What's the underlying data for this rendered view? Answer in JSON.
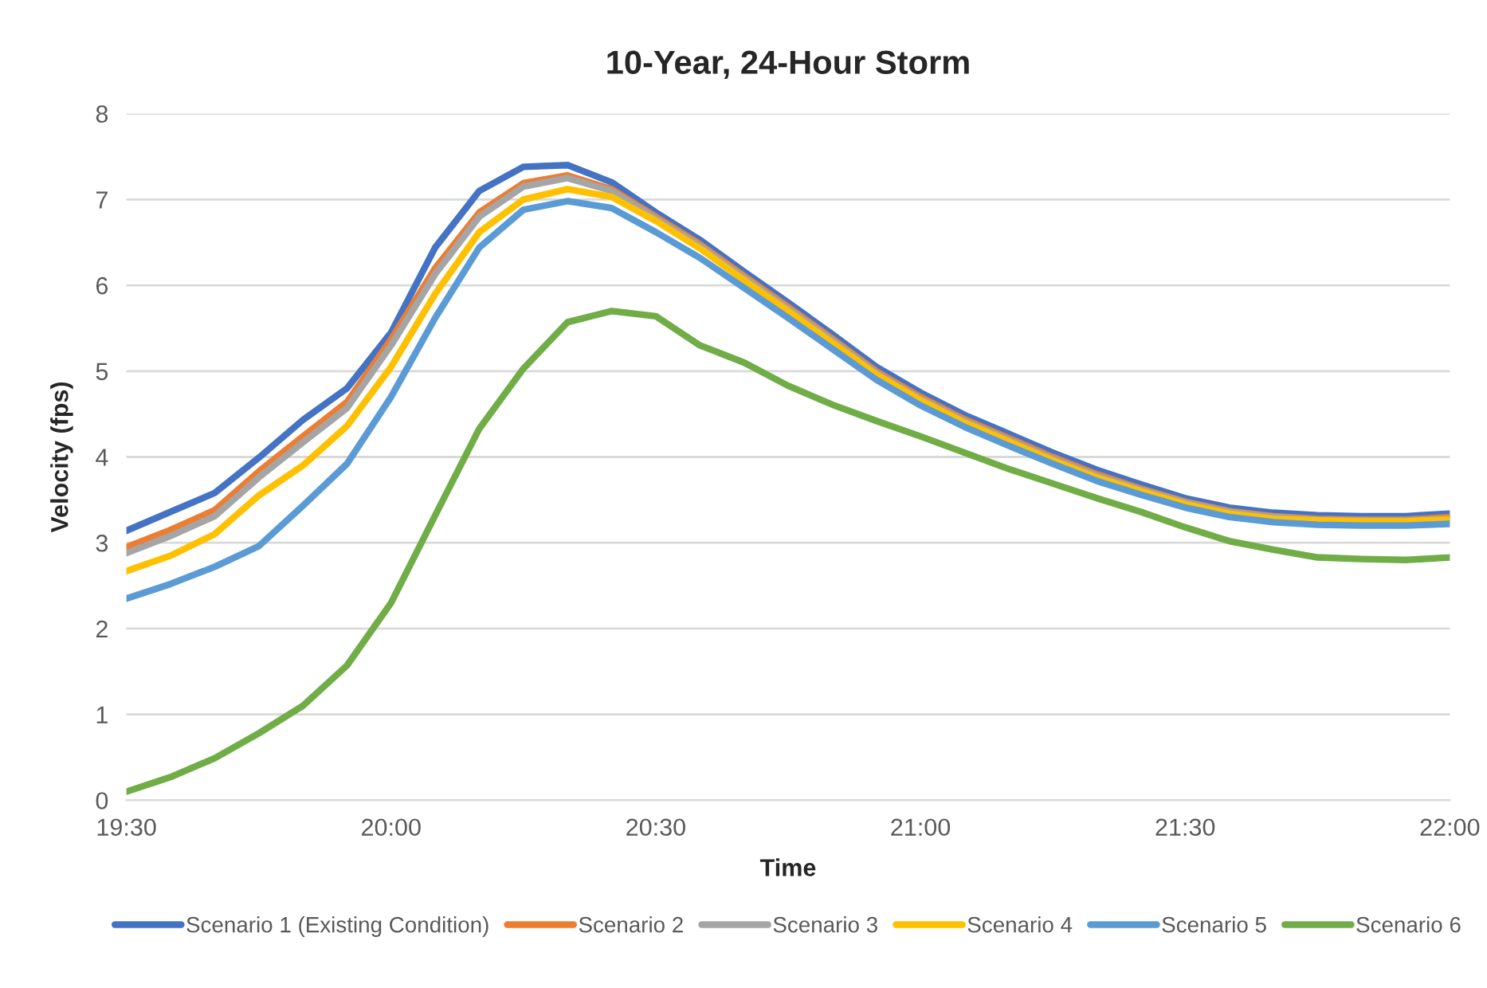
{
  "chart_data": {
    "type": "line",
    "title": "10-Year, 24-Hour Storm",
    "xlabel": "Time",
    "ylabel": "Velocity (fps)",
    "x": [
      19.5,
      19.5833,
      19.6667,
      19.75,
      19.8333,
      19.9167,
      20.0,
      20.0833,
      20.1667,
      20.25,
      20.3333,
      20.4167,
      20.5,
      20.5833,
      20.6667,
      20.75,
      20.8333,
      20.9167,
      21.0,
      21.0833,
      21.1667,
      21.25,
      21.3333,
      21.4167,
      21.5,
      21.5833,
      21.6667,
      21.75,
      21.8333,
      21.9167,
      22.0
    ],
    "series": [
      {
        "name": "Scenario 1 (Existing Condition)",
        "color": "#4472c4",
        "values": [
          3.14,
          3.36,
          3.58,
          3.99,
          4.43,
          4.8,
          5.45,
          6.44,
          7.1,
          7.38,
          7.4,
          7.2,
          6.85,
          6.53,
          6.16,
          5.8,
          5.43,
          5.05,
          4.75,
          4.49,
          4.27,
          4.05,
          3.85,
          3.68,
          3.52,
          3.41,
          3.35,
          3.32,
          3.31,
          3.31,
          3.34
        ]
      },
      {
        "name": "Scenario 2",
        "color": "#ed7d31",
        "values": [
          2.95,
          3.15,
          3.38,
          3.83,
          4.24,
          4.64,
          5.37,
          6.2,
          6.85,
          7.19,
          7.28,
          7.12,
          6.8,
          6.48,
          6.11,
          5.75,
          5.38,
          5.0,
          4.7,
          4.44,
          4.22,
          4.0,
          3.8,
          3.63,
          3.48,
          3.37,
          3.31,
          3.28,
          3.27,
          3.27,
          3.3
        ]
      },
      {
        "name": "Scenario 3",
        "color": "#a5a5a5",
        "values": [
          2.88,
          3.08,
          3.31,
          3.76,
          4.17,
          4.57,
          5.3,
          6.13,
          6.8,
          7.15,
          7.25,
          7.1,
          6.78,
          6.46,
          6.09,
          5.73,
          5.36,
          4.98,
          4.68,
          4.42,
          4.2,
          3.98,
          3.78,
          3.62,
          3.47,
          3.36,
          3.3,
          3.27,
          3.26,
          3.26,
          3.28
        ]
      },
      {
        "name": "Scenario 4",
        "color": "#ffc000",
        "values": [
          2.67,
          2.85,
          3.1,
          3.55,
          3.9,
          4.36,
          5.05,
          5.9,
          6.62,
          7.0,
          7.12,
          7.03,
          6.75,
          6.43,
          6.06,
          5.7,
          5.33,
          4.96,
          4.66,
          4.4,
          4.18,
          3.96,
          3.76,
          3.6,
          3.45,
          3.34,
          3.28,
          3.26,
          3.25,
          3.25,
          3.27
        ]
      },
      {
        "name": "Scenario 5",
        "color": "#5b9bd5",
        "values": [
          2.35,
          2.52,
          2.72,
          2.96,
          3.43,
          3.92,
          4.7,
          5.62,
          6.44,
          6.88,
          6.98,
          6.9,
          6.62,
          6.32,
          5.97,
          5.62,
          5.26,
          4.9,
          4.6,
          4.35,
          4.13,
          3.92,
          3.72,
          3.56,
          3.41,
          3.3,
          3.24,
          3.21,
          3.2,
          3.2,
          3.22
        ]
      },
      {
        "name": "Scenario 6",
        "color": "#70ad47",
        "values": [
          0.1,
          0.27,
          0.49,
          0.78,
          1.1,
          1.57,
          2.3,
          3.32,
          4.33,
          5.03,
          5.57,
          5.7,
          5.64,
          5.3,
          5.1,
          4.83,
          4.61,
          4.42,
          4.24,
          4.05,
          3.86,
          3.69,
          3.52,
          3.36,
          3.18,
          3.02,
          2.92,
          2.83,
          2.81,
          2.8,
          2.83
        ]
      }
    ],
    "xlim": [
      19.5,
      22.0
    ],
    "xticks": [
      {
        "value": 19.5,
        "label": "19:30"
      },
      {
        "value": 20.0,
        "label": "20:00"
      },
      {
        "value": 20.5,
        "label": "20:30"
      },
      {
        "value": 21.0,
        "label": "21:00"
      },
      {
        "value": 21.5,
        "label": "21:30"
      },
      {
        "value": 22.0,
        "label": "22:00"
      }
    ],
    "ylim": [
      0,
      8
    ],
    "yticks": [
      0,
      1,
      2,
      3,
      4,
      5,
      6,
      7,
      8
    ],
    "grid": "y",
    "legend": "bottom",
    "marker": "none",
    "line_style": "solid"
  }
}
